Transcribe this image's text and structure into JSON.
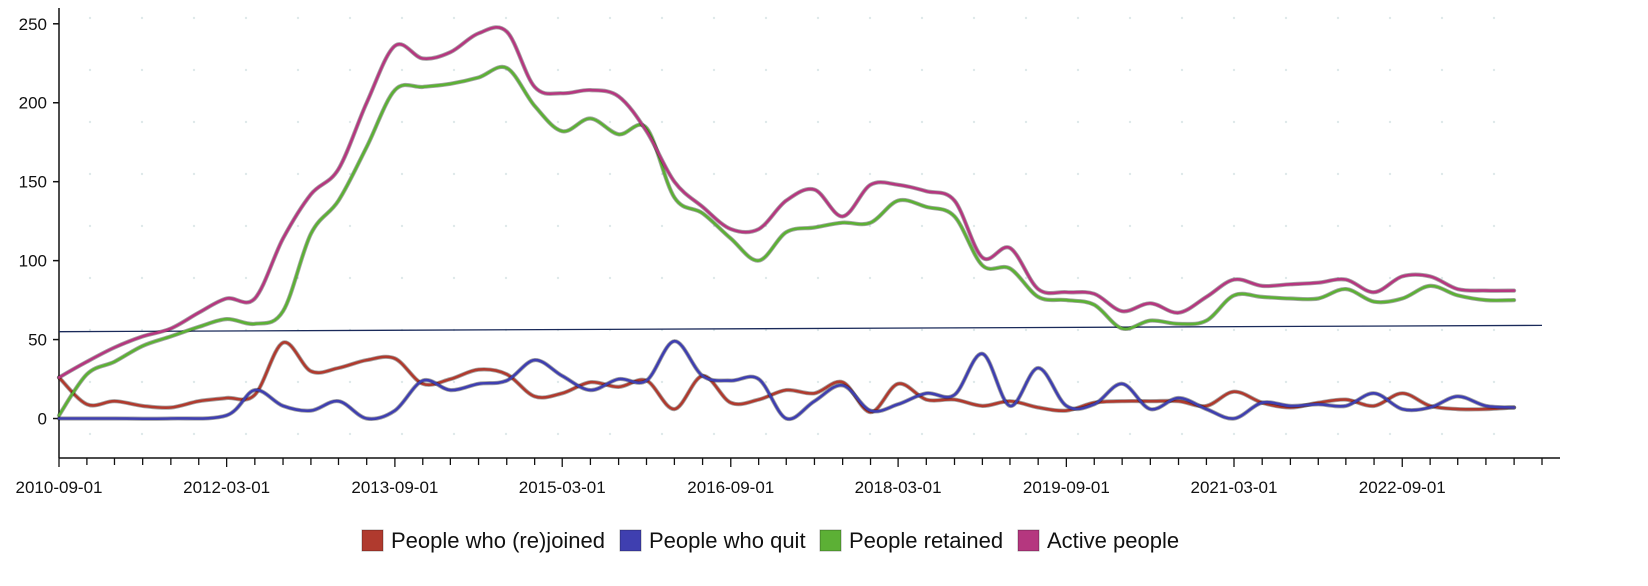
{
  "chart_data": {
    "type": "line",
    "title": "",
    "xlabel": "",
    "ylabel": "",
    "xlim": [
      "2010-09-01",
      "2023-12-01"
    ],
    "ylim": [
      -25,
      260
    ],
    "y_ticks": [
      0,
      50,
      100,
      150,
      200,
      250
    ],
    "x_tick_labels": [
      "2010-09-01",
      "2012-03-01",
      "2013-09-01",
      "2015-03-01",
      "2016-09-01",
      "2018-03-01",
      "2019-09-01",
      "2021-03-01",
      "2022-09-01"
    ],
    "legend_position": "bottom",
    "grid": false,
    "reference_line": {
      "color": "#1a2a5a",
      "start": [
        "2010-09-01",
        55
      ],
      "end": [
        "2023-12-01",
        59
      ]
    },
    "series": [
      {
        "name": "People who (re)joined",
        "color": "#b03a2e",
        "points": [
          [
            "2010-09-01",
            26
          ],
          [
            "2010-12-01",
            9
          ],
          [
            "2011-03-01",
            11
          ],
          [
            "2011-06-01",
            8
          ],
          [
            "2011-09-01",
            7
          ],
          [
            "2011-12-01",
            11
          ],
          [
            "2012-03-01",
            13
          ],
          [
            "2012-06-01",
            15
          ],
          [
            "2012-09-01",
            48
          ],
          [
            "2012-12-01",
            30
          ],
          [
            "2013-03-01",
            32
          ],
          [
            "2013-06-01",
            37
          ],
          [
            "2013-09-01",
            38
          ],
          [
            "2013-12-01",
            22
          ],
          [
            "2014-03-01",
            25
          ],
          [
            "2014-06-01",
            31
          ],
          [
            "2014-09-01",
            28
          ],
          [
            "2014-12-01",
            14
          ],
          [
            "2015-03-01",
            16
          ],
          [
            "2015-06-01",
            23
          ],
          [
            "2015-09-01",
            20
          ],
          [
            "2015-12-01",
            24
          ],
          [
            "2016-03-01",
            6
          ],
          [
            "2016-06-01",
            27
          ],
          [
            "2016-09-01",
            10
          ],
          [
            "2016-12-01",
            12
          ],
          [
            "2017-03-01",
            18
          ],
          [
            "2017-06-01",
            16
          ],
          [
            "2017-09-01",
            23
          ],
          [
            "2017-12-01",
            4
          ],
          [
            "2018-03-01",
            22
          ],
          [
            "2018-06-01",
            12
          ],
          [
            "2018-09-01",
            12
          ],
          [
            "2018-12-01",
            8
          ],
          [
            "2019-03-01",
            11
          ],
          [
            "2019-06-01",
            7
          ],
          [
            "2019-09-01",
            5
          ],
          [
            "2019-12-01",
            10
          ],
          [
            "2020-03-01",
            11
          ],
          [
            "2020-06-01",
            11
          ],
          [
            "2020-09-01",
            11
          ],
          [
            "2020-12-01",
            8
          ],
          [
            "2021-03-01",
            17
          ],
          [
            "2021-06-01",
            10
          ],
          [
            "2021-09-01",
            7
          ],
          [
            "2021-12-01",
            10
          ],
          [
            "2022-03-01",
            12
          ],
          [
            "2022-06-01",
            8
          ],
          [
            "2022-09-01",
            16
          ],
          [
            "2022-12-01",
            8
          ],
          [
            "2023-03-01",
            6
          ],
          [
            "2023-06-01",
            6
          ],
          [
            "2023-09-01",
            7
          ]
        ]
      },
      {
        "name": "People who quit",
        "color": "#3f3fb0",
        "points": [
          [
            "2010-09-01",
            0
          ],
          [
            "2011-03-01",
            0
          ],
          [
            "2011-09-01",
            0
          ],
          [
            "2012-03-01",
            2
          ],
          [
            "2012-06-01",
            18
          ],
          [
            "2012-09-01",
            8
          ],
          [
            "2012-12-01",
            5
          ],
          [
            "2013-03-01",
            11
          ],
          [
            "2013-06-01",
            0
          ],
          [
            "2013-09-01",
            5
          ],
          [
            "2013-12-01",
            24
          ],
          [
            "2014-03-01",
            18
          ],
          [
            "2014-06-01",
            22
          ],
          [
            "2014-09-01",
            24
          ],
          [
            "2014-12-01",
            37
          ],
          [
            "2015-03-01",
            27
          ],
          [
            "2015-06-01",
            18
          ],
          [
            "2015-09-01",
            25
          ],
          [
            "2015-12-01",
            24
          ],
          [
            "2016-03-01",
            49
          ],
          [
            "2016-06-01",
            27
          ],
          [
            "2016-09-01",
            24
          ],
          [
            "2016-12-01",
            25
          ],
          [
            "2017-03-01",
            0
          ],
          [
            "2017-06-01",
            11
          ],
          [
            "2017-09-01",
            21
          ],
          [
            "2017-12-01",
            5
          ],
          [
            "2018-03-01",
            9
          ],
          [
            "2018-06-01",
            16
          ],
          [
            "2018-09-01",
            15
          ],
          [
            "2018-12-01",
            41
          ],
          [
            "2019-03-01",
            8
          ],
          [
            "2019-06-01",
            32
          ],
          [
            "2019-09-01",
            8
          ],
          [
            "2019-12-01",
            9
          ],
          [
            "2020-03-01",
            22
          ],
          [
            "2020-06-01",
            6
          ],
          [
            "2020-09-01",
            13
          ],
          [
            "2020-12-01",
            6
          ],
          [
            "2021-03-01",
            0
          ],
          [
            "2021-06-01",
            10
          ],
          [
            "2021-09-01",
            8
          ],
          [
            "2021-12-01",
            9
          ],
          [
            "2022-03-01",
            8
          ],
          [
            "2022-06-01",
            16
          ],
          [
            "2022-09-01",
            6
          ],
          [
            "2022-12-01",
            7
          ],
          [
            "2023-03-01",
            14
          ],
          [
            "2023-06-01",
            8
          ],
          [
            "2023-09-01",
            7
          ]
        ]
      },
      {
        "name": "People retained",
        "color": "#5cb035",
        "points": [
          [
            "2010-09-01",
            2
          ],
          [
            "2010-12-01",
            28
          ],
          [
            "2011-03-01",
            36
          ],
          [
            "2011-06-01",
            46
          ],
          [
            "2011-09-01",
            52
          ],
          [
            "2011-12-01",
            58
          ],
          [
            "2012-03-01",
            63
          ],
          [
            "2012-06-01",
            60
          ],
          [
            "2012-09-01",
            68
          ],
          [
            "2012-12-01",
            117
          ],
          [
            "2013-03-01",
            138
          ],
          [
            "2013-06-01",
            172
          ],
          [
            "2013-09-01",
            208
          ],
          [
            "2013-12-01",
            210
          ],
          [
            "2014-03-01",
            212
          ],
          [
            "2014-06-01",
            216
          ],
          [
            "2014-09-01",
            222
          ],
          [
            "2014-12-01",
            198
          ],
          [
            "2015-03-01",
            182
          ],
          [
            "2015-06-01",
            190
          ],
          [
            "2015-09-01",
            180
          ],
          [
            "2015-12-01",
            184
          ],
          [
            "2016-03-01",
            140
          ],
          [
            "2016-06-01",
            130
          ],
          [
            "2016-09-01",
            114
          ],
          [
            "2016-12-01",
            100
          ],
          [
            "2017-03-01",
            118
          ],
          [
            "2017-06-01",
            121
          ],
          [
            "2017-09-01",
            124
          ],
          [
            "2017-12-01",
            124
          ],
          [
            "2018-03-01",
            138
          ],
          [
            "2018-06-01",
            134
          ],
          [
            "2018-09-01",
            128
          ],
          [
            "2018-12-01",
            97
          ],
          [
            "2019-03-01",
            95
          ],
          [
            "2019-06-01",
            77
          ],
          [
            "2019-09-01",
            75
          ],
          [
            "2019-12-01",
            72
          ],
          [
            "2020-03-01",
            57
          ],
          [
            "2020-06-01",
            62
          ],
          [
            "2020-09-01",
            60
          ],
          [
            "2020-12-01",
            62
          ],
          [
            "2021-03-01",
            78
          ],
          [
            "2021-06-01",
            77
          ],
          [
            "2021-09-01",
            76
          ],
          [
            "2021-12-01",
            76
          ],
          [
            "2022-03-01",
            82
          ],
          [
            "2022-06-01",
            74
          ],
          [
            "2022-09-01",
            76
          ],
          [
            "2022-12-01",
            84
          ],
          [
            "2023-03-01",
            78
          ],
          [
            "2023-06-01",
            75
          ],
          [
            "2023-09-01",
            75
          ]
        ]
      },
      {
        "name": "Active people",
        "color": "#b5377f",
        "points": [
          [
            "2010-09-01",
            26
          ],
          [
            "2010-12-01",
            36
          ],
          [
            "2011-03-01",
            45
          ],
          [
            "2011-06-01",
            52
          ],
          [
            "2011-09-01",
            57
          ],
          [
            "2011-12-01",
            67
          ],
          [
            "2012-03-01",
            76
          ],
          [
            "2012-06-01",
            76
          ],
          [
            "2012-09-01",
            114
          ],
          [
            "2012-12-01",
            142
          ],
          [
            "2013-03-01",
            158
          ],
          [
            "2013-06-01",
            200
          ],
          [
            "2013-09-01",
            236
          ],
          [
            "2013-12-01",
            228
          ],
          [
            "2014-03-01",
            232
          ],
          [
            "2014-06-01",
            244
          ],
          [
            "2014-09-01",
            245
          ],
          [
            "2014-12-01",
            210
          ],
          [
            "2015-03-01",
            206
          ],
          [
            "2015-06-01",
            208
          ],
          [
            "2015-09-01",
            204
          ],
          [
            "2015-12-01",
            182
          ],
          [
            "2016-03-01",
            150
          ],
          [
            "2016-06-01",
            134
          ],
          [
            "2016-09-01",
            120
          ],
          [
            "2016-12-01",
            120
          ],
          [
            "2017-03-01",
            138
          ],
          [
            "2017-06-01",
            145
          ],
          [
            "2017-09-01",
            128
          ],
          [
            "2017-12-01",
            148
          ],
          [
            "2018-03-01",
            148
          ],
          [
            "2018-06-01",
            144
          ],
          [
            "2018-09-01",
            138
          ],
          [
            "2018-12-01",
            102
          ],
          [
            "2019-03-01",
            108
          ],
          [
            "2019-06-01",
            82
          ],
          [
            "2019-09-01",
            80
          ],
          [
            "2019-12-01",
            79
          ],
          [
            "2020-03-01",
            68
          ],
          [
            "2020-06-01",
            73
          ],
          [
            "2020-09-01",
            67
          ],
          [
            "2020-12-01",
            77
          ],
          [
            "2021-03-01",
            88
          ],
          [
            "2021-06-01",
            84
          ],
          [
            "2021-09-01",
            85
          ],
          [
            "2021-12-01",
            86
          ],
          [
            "2022-03-01",
            88
          ],
          [
            "2022-06-01",
            80
          ],
          [
            "2022-09-01",
            90
          ],
          [
            "2022-12-01",
            90
          ],
          [
            "2023-03-01",
            82
          ],
          [
            "2023-06-01",
            81
          ],
          [
            "2023-09-01",
            81
          ]
        ]
      }
    ]
  }
}
